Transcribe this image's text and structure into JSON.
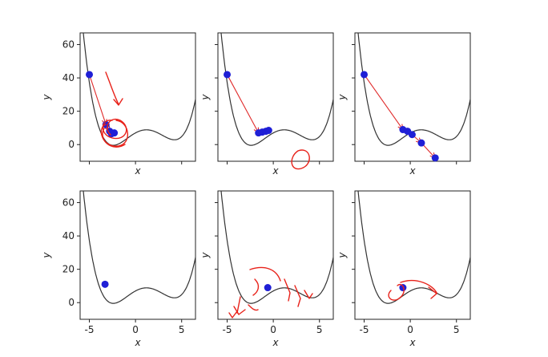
{
  "chart_data": {
    "type": "line",
    "layout_grid": "2x3",
    "shared": {
      "xlabel": "x",
      "ylabel": "y",
      "xlim": [
        -6,
        6.5
      ],
      "ylim": [
        -10,
        67
      ],
      "xticks": [
        "-5",
        "0",
        "5"
      ],
      "xtick_values": [
        -5,
        0,
        5
      ],
      "yticks": [
        "0",
        "20",
        "40",
        "60"
      ],
      "ytick_values": [
        0,
        20,
        40,
        60
      ],
      "curve_function": "x^4/16 - x^3/4 - x^2 + 3x + 7 (approx. shape)",
      "curve_color": "#333333",
      "point_color": "#1f1fd6",
      "arrow_color": "#e02a2a",
      "annotation_color": "#e8221a"
    },
    "panels": [
      {
        "id": "r1c1",
        "show_ytick_labels": true,
        "show_xtick_labels": false,
        "points": [
          [
            -5,
            42
          ],
          [
            -3.2,
            12
          ],
          [
            -2.8,
            8
          ],
          [
            -2.3,
            7
          ],
          [
            -2.6,
            6.5
          ]
        ],
        "annotations": "spiral"
      },
      {
        "id": "r1c2",
        "show_ytick_labels": false,
        "show_xtick_labels": false,
        "points": [
          [
            -5,
            42
          ],
          [
            -1.6,
            7
          ],
          [
            -1.2,
            7.5
          ],
          [
            -0.8,
            8
          ],
          [
            -0.5,
            8.5
          ]
        ],
        "annotations": "circle"
      },
      {
        "id": "r1c3",
        "show_ytick_labels": false,
        "show_xtick_labels": false,
        "points": [
          [
            -5,
            42
          ],
          [
            -0.8,
            9
          ],
          [
            -0.3,
            8
          ],
          [
            0.2,
            6
          ],
          [
            1.2,
            1
          ],
          [
            2.7,
            -8
          ]
        ],
        "annotations": "none"
      },
      {
        "id": "r2c1",
        "show_ytick_labels": true,
        "show_xtick_labels": true,
        "points": [
          [
            -3.3,
            11
          ]
        ],
        "annotations": "none"
      },
      {
        "id": "r2c2",
        "show_ytick_labels": false,
        "show_xtick_labels": true,
        "points": [
          [
            -0.6,
            9
          ]
        ],
        "annotations": "scribbles"
      },
      {
        "id": "r2c3",
        "show_ytick_labels": false,
        "show_xtick_labels": true,
        "points": [
          [
            -0.8,
            9
          ]
        ],
        "annotations": "loop"
      }
    ]
  }
}
